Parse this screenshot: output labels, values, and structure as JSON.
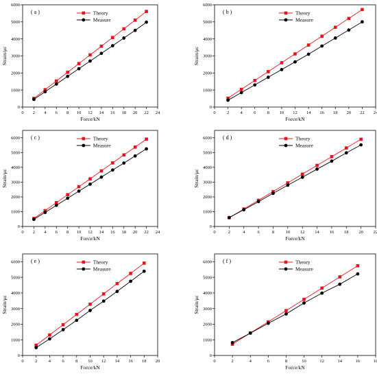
{
  "chart_data": [
    {
      "type": "line",
      "panel_label": "( a )",
      "xlabel": "Force/kN",
      "ylabel": "Strain/με",
      "xlim": [
        0,
        24
      ],
      "ylim": [
        0,
        6000
      ],
      "xticks": [
        "0",
        "2",
        "4",
        "6",
        "8",
        "10",
        "12",
        "14",
        "16",
        "18",
        "20",
        "22",
        "24"
      ],
      "yticks": [
        "0",
        "1000",
        "2000",
        "3000",
        "4000",
        "5000",
        "6000"
      ],
      "legend_position": "top-center",
      "x": [
        2,
        4,
        6,
        8,
        10,
        12,
        14,
        16,
        18,
        20,
        22
      ],
      "series": [
        {
          "name": "Theory",
          "color": "#e8141c",
          "marker": "square",
          "values": [
            510,
            1020,
            1530,
            2040,
            2550,
            3060,
            3570,
            4080,
            4590,
            5100,
            5610
          ]
        },
        {
          "name": "Measure",
          "color": "#000000",
          "marker": "circle",
          "values": [
            450,
            900,
            1350,
            1800,
            2250,
            2700,
            3150,
            3600,
            4050,
            4500,
            4980
          ]
        }
      ]
    },
    {
      "type": "line",
      "panel_label": "( b )",
      "xlabel": "Force/kN",
      "ylabel": "Strain/με",
      "xlim": [
        0,
        24
      ],
      "ylim": [
        0,
        6000
      ],
      "xticks": [
        "0",
        "2",
        "4",
        "6",
        "8",
        "10",
        "12",
        "14",
        "16",
        "18",
        "20",
        "22",
        "24"
      ],
      "yticks": [
        "0",
        "1000",
        "2000",
        "3000",
        "4000",
        "5000",
        "6000"
      ],
      "legend_position": "top-center",
      "x": [
        2,
        4,
        6,
        8,
        10,
        12,
        14,
        16,
        18,
        20,
        22
      ],
      "series": [
        {
          "name": "Theory",
          "color": "#e8141c",
          "marker": "square",
          "values": [
            520,
            1040,
            1560,
            2080,
            2600,
            3120,
            3640,
            4160,
            4680,
            5200,
            5720
          ]
        },
        {
          "name": "Measure",
          "color": "#000000",
          "marker": "circle",
          "values": [
            400,
            850,
            1300,
            1750,
            2200,
            2650,
            3100,
            3580,
            4050,
            4520,
            5000
          ]
        }
      ]
    },
    {
      "type": "line",
      "panel_label": "( c )",
      "xlabel": "Force/kN",
      "ylabel": "Strain/με",
      "xlim": [
        0,
        24
      ],
      "ylim": [
        0,
        6500
      ],
      "xticks": [
        "0",
        "2",
        "4",
        "6",
        "8",
        "10",
        "12",
        "14",
        "16",
        "18",
        "20",
        "22",
        "24"
      ],
      "yticks": [
        "0",
        "1000",
        "2000",
        "3000",
        "4000",
        "5000",
        "6000"
      ],
      "legend_position": "top-center",
      "x": [
        2,
        4,
        6,
        8,
        10,
        12,
        14,
        16,
        18,
        20,
        22
      ],
      "series": [
        {
          "name": "Theory",
          "color": "#e8141c",
          "marker": "square",
          "values": [
            540,
            1070,
            1610,
            2150,
            2690,
            3220,
            3760,
            4300,
            4840,
            5370,
            5910
          ]
        },
        {
          "name": "Measure",
          "color": "#000000",
          "marker": "circle",
          "values": [
            480,
            950,
            1430,
            1910,
            2390,
            2860,
            3340,
            3820,
            4290,
            4770,
            5250
          ]
        }
      ]
    },
    {
      "type": "line",
      "panel_label": "( d )",
      "xlabel": "Force/kN",
      "ylabel": "Strain/με",
      "xlim": [
        0,
        22
      ],
      "ylim": [
        0,
        6500
      ],
      "xticks": [
        "0",
        "2",
        "4",
        "6",
        "8",
        "10",
        "12",
        "14",
        "16",
        "18",
        "20",
        "22"
      ],
      "yticks": [
        "0",
        "1000",
        "2000",
        "3000",
        "4000",
        "5000",
        "6000"
      ],
      "legend_position": "top-center",
      "x": [
        2,
        4,
        6,
        8,
        10,
        12,
        14,
        16,
        18,
        20
      ],
      "series": [
        {
          "name": "Theory",
          "color": "#e8141c",
          "marker": "square",
          "values": [
            590,
            1180,
            1770,
            2360,
            2950,
            3540,
            4130,
            4720,
            5310,
            5900
          ]
        },
        {
          "name": "Measure",
          "color": "#000000",
          "marker": "circle",
          "values": [
            600,
            1130,
            1680,
            2240,
            2790,
            3330,
            3880,
            4420,
            4980,
            5520
          ]
        }
      ]
    },
    {
      "type": "line",
      "panel_label": "( e )",
      "xlabel": "Force/kN",
      "ylabel": "Strain/με",
      "xlim": [
        0,
        20
      ],
      "ylim": [
        0,
        6500
      ],
      "xticks": [
        "0",
        "2",
        "4",
        "6",
        "8",
        "10",
        "12",
        "14",
        "16",
        "18",
        "20"
      ],
      "yticks": [
        "0",
        "1000",
        "2000",
        "3000",
        "4000",
        "5000",
        "6000"
      ],
      "legend_position": "top-center",
      "x": [
        2,
        4,
        6,
        8,
        10,
        12,
        14,
        16,
        18
      ],
      "series": [
        {
          "name": "Theory",
          "color": "#e8141c",
          "marker": "square",
          "values": [
            660,
            1310,
            1970,
            2630,
            3280,
            3940,
            4600,
            5250,
            5910
          ]
        },
        {
          "name": "Measure",
          "color": "#000000",
          "marker": "circle",
          "values": [
            500,
            1060,
            1650,
            2250,
            2880,
            3480,
            4100,
            4750,
            5390
          ]
        }
      ]
    },
    {
      "type": "line",
      "panel_label": "( f )",
      "xlabel": "Force/kN",
      "ylabel": "Strain/με",
      "xlim": [
        0,
        18
      ],
      "ylim": [
        0,
        6500
      ],
      "xticks": [
        "0",
        "2",
        "4",
        "6",
        "8",
        "10",
        "12",
        "14",
        "16",
        "18"
      ],
      "yticks": [
        "0",
        "1000",
        "2000",
        "3000",
        "4000",
        "5000",
        "6000"
      ],
      "legend_position": "top-center",
      "x": [
        2,
        4,
        6,
        8,
        10,
        12,
        14,
        16
      ],
      "series": [
        {
          "name": "Theory",
          "color": "#e8141c",
          "marker": "square",
          "values": [
            720,
            1440,
            2150,
            2870,
            3590,
            4310,
            5030,
            5740
          ]
        },
        {
          "name": "Measure",
          "color": "#000000",
          "marker": "circle",
          "values": [
            820,
            1430,
            2060,
            2660,
            3360,
            3990,
            4560,
            5220
          ]
        }
      ]
    }
  ]
}
